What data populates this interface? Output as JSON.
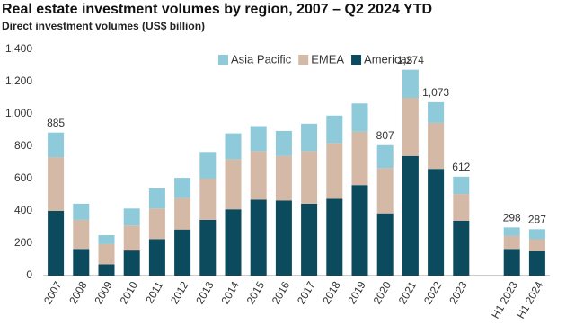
{
  "chart_data": {
    "type": "stacked_bar",
    "title": "Real estate investment volumes by region, 2007 – Q2 2024 YTD",
    "subtitle": "Direct investment volumes (US$ billion)",
    "categories": [
      "2007",
      "2008",
      "2009",
      "2010",
      "2011",
      "2012",
      "2013",
      "2014",
      "2015",
      "2016",
      "2017",
      "2018",
      "2019",
      "2020",
      "2021",
      "2022",
      "2023",
      null,
      "H1 2023",
      "H1 2024"
    ],
    "series": [
      {
        "name": "Americas",
        "color": "#0c4a5e",
        "values": [
          400,
          165,
          70,
          155,
          225,
          285,
          345,
          410,
          470,
          465,
          445,
          475,
          560,
          385,
          740,
          660,
          340,
          null,
          165,
          150
        ]
      },
      {
        "name": "EMEA",
        "color": "#d5b9a7",
        "values": [
          333,
          180,
          125,
          155,
          190,
          195,
          255,
          310,
          300,
          275,
          325,
          345,
          330,
          280,
          360,
          285,
          165,
          null,
          80,
          75
        ]
      },
      {
        "name": "Asia Pacific",
        "color": "#8ecad9",
        "values": [
          152,
          100,
          55,
          105,
          125,
          125,
          165,
          160,
          155,
          155,
          170,
          170,
          175,
          142,
          174,
          128,
          107,
          null,
          53,
          62
        ]
      }
    ],
    "totals": [
      885,
      null,
      null,
      null,
      null,
      null,
      null,
      null,
      null,
      null,
      null,
      null,
      null,
      807,
      1274,
      1073,
      612,
      null,
      298,
      287
    ],
    "total_labels": [
      "885",
      null,
      null,
      null,
      null,
      null,
      null,
      null,
      null,
      null,
      null,
      null,
      null,
      "807",
      "1,274",
      "1,073",
      "612",
      null,
      "298",
      "287"
    ],
    "ylim": [
      0,
      1400
    ],
    "yticks": [
      0,
      200,
      400,
      600,
      800,
      {
        "value": 1000,
        "label": "1,000"
      },
      {
        "value": 1200,
        "label": "1,200"
      },
      {
        "value": 1400,
        "label": "1,400"
      }
    ],
    "grid": false,
    "legend": "top"
  }
}
